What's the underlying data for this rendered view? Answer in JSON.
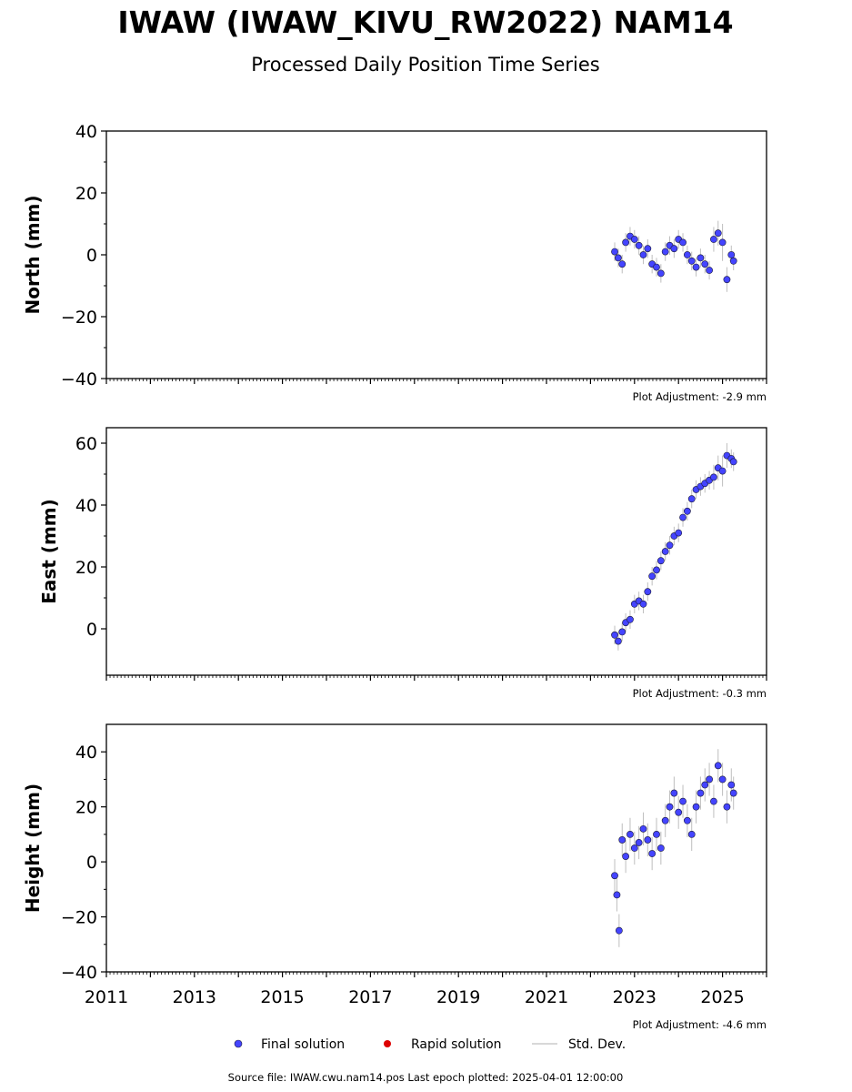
{
  "page": {
    "title": "IWAW (IWAW_KIVU_RW2022) NAM14",
    "subtitle": "Processed Daily Position Time Series",
    "footer": "Source file: IWAW.cwu.nam14.pos  Last epoch plotted: 2025-04-01 12:00:00"
  },
  "legend": {
    "items": [
      {
        "label": "Final solution",
        "color": "#4444ff",
        "marker": "dot"
      },
      {
        "label": "Rapid solution",
        "color": "#dd0000",
        "marker": "dot"
      },
      {
        "label": "Std. Dev.",
        "color": "#cccccc",
        "marker": "line"
      }
    ],
    "placement": "bottom-center"
  },
  "colors": {
    "final": "#4444ff",
    "marker_edge": "#1a1a3a",
    "rapid": "#dd0000",
    "stddev": "#888888"
  },
  "chart_data": [
    {
      "type": "scatter",
      "ylabel": "North (mm)",
      "ylim": [
        -40,
        40
      ],
      "yticks": [
        40,
        20,
        0,
        -20,
        -40
      ],
      "ytick_labels": [
        "40",
        "20",
        "0",
        "−20",
        "−40"
      ],
      "xlim": [
        2011,
        2026
      ],
      "adjustment": "Plot Adjustment: -2.9 mm",
      "series": [
        {
          "name": "Final solution",
          "x": [
            2022.55,
            2022.63,
            2022.72,
            2022.8,
            2022.9,
            2023.0,
            2023.1,
            2023.2,
            2023.3,
            2023.4,
            2023.5,
            2023.6,
            2023.7,
            2023.8,
            2023.9,
            2024.0,
            2024.1,
            2024.2,
            2024.3,
            2024.4,
            2024.5,
            2024.6,
            2024.7,
            2024.8,
            2024.9,
            2025.0,
            2025.1,
            2025.2,
            2025.25
          ],
          "y": [
            1,
            -1,
            -3,
            4,
            6,
            5,
            3,
            0,
            2,
            -3,
            -4,
            -6,
            1,
            3,
            2,
            5,
            4,
            0,
            -2,
            -4,
            -1,
            -3,
            -5,
            5,
            7,
            4,
            -8,
            0,
            -2
          ],
          "sd": [
            3,
            3,
            3,
            3,
            3,
            3,
            3,
            3,
            3,
            3,
            3,
            3,
            3,
            3,
            3,
            3,
            3,
            3,
            3,
            3,
            3,
            3,
            3,
            4,
            4,
            6,
            4,
            3,
            3
          ]
        }
      ]
    },
    {
      "type": "scatter",
      "ylabel": "East (mm)",
      "ylim": [
        -15,
        65
      ],
      "yticks": [
        60,
        40,
        20,
        0
      ],
      "ytick_labels": [
        "60",
        "40",
        "20",
        "0"
      ],
      "xlim": [
        2011,
        2026
      ],
      "adjustment": "Plot Adjustment: -0.3 mm",
      "series": [
        {
          "name": "Final solution",
          "x": [
            2022.55,
            2022.63,
            2022.72,
            2022.8,
            2022.9,
            2023.0,
            2023.1,
            2023.2,
            2023.3,
            2023.4,
            2023.5,
            2023.6,
            2023.7,
            2023.8,
            2023.9,
            2024.0,
            2024.1,
            2024.2,
            2024.3,
            2024.4,
            2024.5,
            2024.6,
            2024.7,
            2024.8,
            2024.9,
            2025.0,
            2025.1,
            2025.2,
            2025.25
          ],
          "y": [
            -2,
            -4,
            -1,
            2,
            3,
            8,
            9,
            8,
            12,
            17,
            19,
            22,
            25,
            27,
            30,
            31,
            36,
            38,
            42,
            45,
            46,
            47,
            48,
            49,
            52,
            51,
            56,
            55,
            54
          ],
          "sd": [
            3,
            3,
            3,
            3,
            3,
            3,
            3,
            3,
            3,
            3,
            3,
            3,
            3,
            3,
            3,
            3,
            3,
            3,
            3,
            3,
            3,
            3,
            3,
            4,
            4,
            5,
            4,
            3,
            3
          ]
        }
      ]
    },
    {
      "type": "scatter",
      "ylabel": "Height (mm)",
      "ylim": [
        -40,
        50
      ],
      "yticks": [
        40,
        20,
        0,
        -20,
        -40
      ],
      "ytick_labels": [
        "40",
        "20",
        "0",
        "−20",
        "−40"
      ],
      "xlim": [
        2011,
        2026
      ],
      "xticks": [
        2011,
        2013,
        2015,
        2017,
        2019,
        2021,
        2023,
        2025
      ],
      "xtick_labels": [
        "2011",
        "2013",
        "2015",
        "2017",
        "2019",
        "2021",
        "2023",
        "2025"
      ],
      "adjustment": "Plot Adjustment: -4.6 mm",
      "series": [
        {
          "name": "Final solution",
          "x": [
            2022.55,
            2022.6,
            2022.65,
            2022.72,
            2022.8,
            2022.9,
            2023.0,
            2023.1,
            2023.2,
            2023.3,
            2023.4,
            2023.5,
            2023.6,
            2023.7,
            2023.8,
            2023.9,
            2024.0,
            2024.1,
            2024.2,
            2024.3,
            2024.4,
            2024.5,
            2024.6,
            2024.7,
            2024.8,
            2024.9,
            2025.0,
            2025.1,
            2025.2,
            2025.25
          ],
          "y": [
            -5,
            -12,
            -25,
            8,
            2,
            10,
            5,
            7,
            12,
            8,
            3,
            10,
            5,
            15,
            20,
            25,
            18,
            22,
            15,
            10,
            20,
            25,
            28,
            30,
            22,
            35,
            30,
            20,
            28,
            25
          ],
          "sd": [
            6,
            6,
            6,
            6,
            6,
            6,
            6,
            6,
            6,
            6,
            6,
            6,
            6,
            6,
            6,
            6,
            6,
            6,
            6,
            6,
            6,
            6,
            6,
            6,
            6,
            6,
            6,
            6,
            6,
            6
          ]
        }
      ]
    }
  ]
}
